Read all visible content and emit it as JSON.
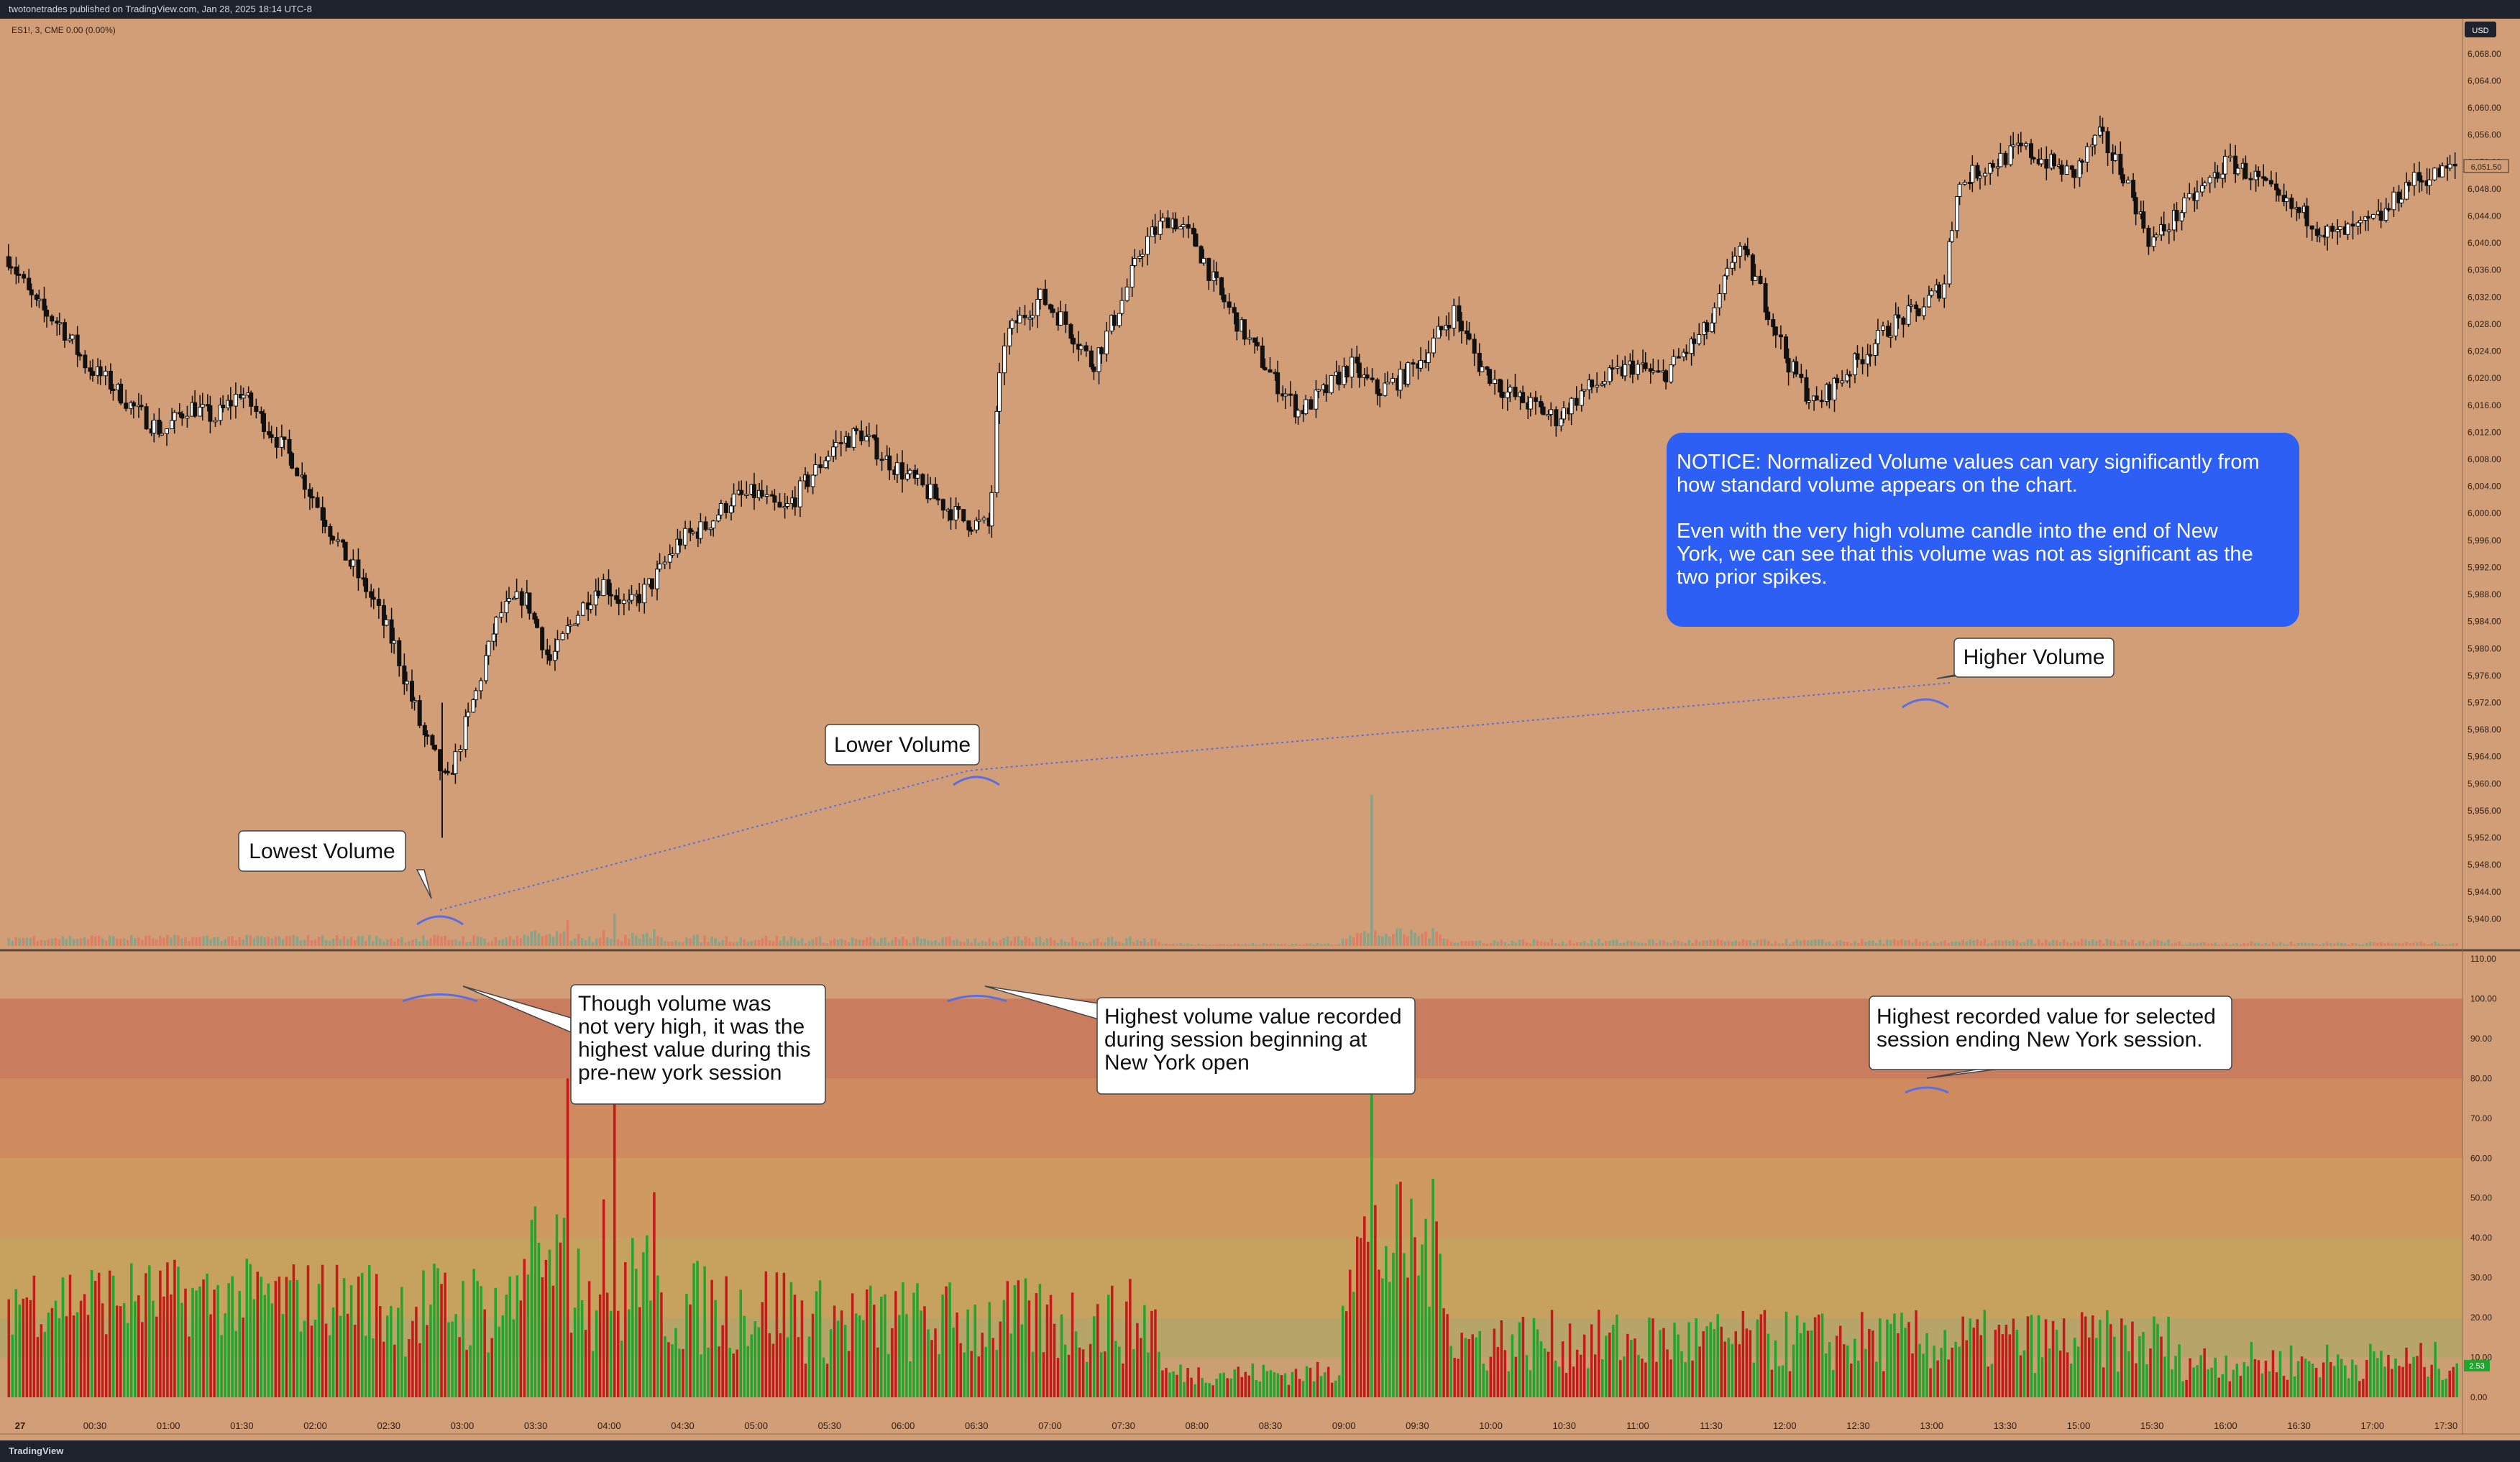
{
  "header": {
    "published_text": "twotonetrades published on TradingView.com, Jan 28, 2025 18:14 UTC-8"
  },
  "footer": {
    "brand": "TradingView"
  },
  "symbol_info": "ES1!, 3, CME  0.00 (0.00%)",
  "currency_badge": "USD",
  "price_tag": "6,051.50",
  "volume_tag": "2.53",
  "colors": {
    "background": "#d29e78",
    "up": "#22a52f",
    "down": "#c41a1a",
    "notice": "#2d5ff5",
    "arc": "#5b6ee0"
  },
  "annotations": {
    "lowest": "Lowest Volume",
    "lower": "Lower Volume",
    "higher": "Higher Volume",
    "notice": [
      "NOTICE: Normalized Volume values can vary significantly from",
      "how standard volume appears on the chart.",
      "",
      "Even with the very high volume candle into the end of New",
      "York, we can see that this volume was not as significant as the",
      "two prior spikes."
    ],
    "pre_ny": [
      "Though volume was",
      "not very high, it was the",
      "highest value during this",
      "pre-new york session"
    ],
    "ny_open": [
      "Highest volume value recorded",
      "during session beginning at",
      "New York open"
    ],
    "ny_end": [
      "Highest recorded value for selected",
      "session ending New York session."
    ]
  },
  "chart_data": [
    {
      "type": "candlestick",
      "title": "ES1!, 3, CME",
      "ylim": [
        5936,
        6070
      ],
      "y_ticks": [
        "6,068.00",
        "6,064.00",
        "6,060.00",
        "6,056.00",
        "6,052.00",
        "6,048.00",
        "6,044.00",
        "6,040.00",
        "6,036.00",
        "6,032.00",
        "6,028.00",
        "6,024.00",
        "6,020.00",
        "6,016.00",
        "6,012.00",
        "6,008.00",
        "6,004.00",
        "6,000.00",
        "5,996.00",
        "5,992.00",
        "5,988.00",
        "5,984.00",
        "5,980.00",
        "5,976.00",
        "5,972.00",
        "5,968.00",
        "5,964.00",
        "5,960.00",
        "5,956.00",
        "5,952.00",
        "5,948.00",
        "5,944.00",
        "5,940.00"
      ],
      "x_ticks": [
        "27",
        "00:30",
        "01:00",
        "01:30",
        "02:00",
        "02:30",
        "03:00",
        "03:30",
        "04:00",
        "04:30",
        "05:00",
        "05:30",
        "06:00",
        "06:30",
        "07:00",
        "07:30",
        "08:00",
        "08:30",
        "09:00",
        "09:30",
        "10:00",
        "10:30",
        "11:00",
        "11:30",
        "12:00",
        "12:30",
        "13:00",
        "13:30",
        "15:00",
        "15:30",
        "16:00",
        "16:30",
        "17:00",
        "17:30"
      ],
      "close_path": [
        [
          0,
          6038
        ],
        [
          10,
          6031
        ],
        [
          20,
          6028
        ],
        [
          30,
          6022
        ],
        [
          40,
          6019
        ],
        [
          50,
          6015
        ],
        [
          60,
          6012
        ],
        [
          70,
          6016
        ],
        [
          80,
          6014
        ],
        [
          90,
          6018
        ],
        [
          100,
          6013
        ],
        [
          110,
          6008
        ],
        [
          120,
          6001
        ],
        [
          130,
          5994
        ],
        [
          140,
          5988
        ],
        [
          150,
          5980
        ],
        [
          160,
          5968
        ],
        [
          170,
          5960
        ],
        [
          180,
          5972
        ],
        [
          190,
          5985
        ],
        [
          200,
          5988
        ],
        [
          210,
          5978
        ],
        [
          220,
          5985
        ],
        [
          230,
          5990
        ],
        [
          240,
          5986
        ],
        [
          250,
          5990
        ],
        [
          260,
          5996
        ],
        [
          270,
          5998
        ],
        [
          280,
          6002
        ],
        [
          290,
          6003
        ],
        [
          300,
          6000
        ],
        [
          310,
          6005
        ],
        [
          320,
          6010
        ],
        [
          330,
          6012
        ],
        [
          340,
          6008
        ],
        [
          350,
          6005
        ],
        [
          360,
          6002
        ],
        [
          370,
          5999
        ],
        [
          380,
          5998
        ],
        [
          385,
          6025
        ],
        [
          390,
          6028
        ],
        [
          400,
          6032
        ],
        [
          410,
          6028
        ],
        [
          420,
          6022
        ],
        [
          430,
          6030
        ],
        [
          440,
          6040
        ],
        [
          450,
          6044
        ],
        [
          460,
          6040
        ],
        [
          470,
          6032
        ],
        [
          480,
          6026
        ],
        [
          490,
          6020
        ],
        [
          500,
          6015
        ],
        [
          510,
          6018
        ],
        [
          520,
          6022
        ],
        [
          530,
          6018
        ],
        [
          540,
          6020
        ],
        [
          550,
          6024
        ],
        [
          560,
          6030
        ],
        [
          570,
          6022
        ],
        [
          580,
          6018
        ],
        [
          590,
          6016
        ],
        [
          600,
          6014
        ],
        [
          610,
          6018
        ],
        [
          620,
          6020
        ],
        [
          630,
          6022
        ],
        [
          640,
          6020
        ],
        [
          650,
          6024
        ],
        [
          660,
          6028
        ],
        [
          670,
          6040
        ],
        [
          680,
          6032
        ],
        [
          690,
          6022
        ],
        [
          700,
          6016
        ],
        [
          710,
          6020
        ],
        [
          720,
          6024
        ],
        [
          730,
          6028
        ],
        [
          740,
          6030
        ],
        [
          750,
          6034
        ],
        [
          755,
          6048
        ],
        [
          760,
          6050
        ],
        [
          770,
          6052
        ],
        [
          780,
          6054
        ],
        [
          790,
          6052
        ],
        [
          800,
          6050
        ],
        [
          810,
          6056
        ],
        [
          820,
          6050
        ],
        [
          830,
          6040
        ],
        [
          840,
          6044
        ],
        [
          850,
          6048
        ],
        [
          860,
          6052
        ],
        [
          870,
          6050
        ],
        [
          880,
          6046
        ],
        [
          890,
          6044
        ],
        [
          900,
          6041
        ],
        [
          910,
          6042
        ],
        [
          920,
          6044
        ],
        [
          930,
          6049
        ],
        [
          940,
          6050
        ],
        [
          950,
          6051.5
        ]
      ],
      "annotations": [
        "Lowest Volume",
        "Lower Volume",
        "Higher Volume"
      ]
    },
    {
      "type": "bar",
      "title": "Normalized Volume",
      "ylim": [
        0,
        110
      ],
      "y_ticks": [
        "110.00",
        "100.00",
        "90.00",
        "80.00",
        "70.00",
        "60.00",
        "50.00",
        "40.00",
        "30.00",
        "20.00",
        "10.00",
        "0.00"
      ],
      "zones": [
        [
          80,
          100
        ],
        [
          60,
          80
        ],
        [
          40,
          60
        ],
        [
          20,
          40
        ],
        [
          10,
          20
        ],
        [
          0,
          10
        ]
      ],
      "spikes": [
        {
          "bar": 168,
          "value": 100,
          "label": "pre-new york session high"
        },
        {
          "bar": 378,
          "value": 100,
          "label": "New York open high"
        },
        {
          "bar": 745,
          "value": 76,
          "label": "New York session end high"
        }
      ],
      "notable_values": [
        {
          "bar": 155,
          "value": 80
        },
        {
          "bar": 760,
          "value": 30
        },
        {
          "bar": 825,
          "value": 38
        },
        {
          "bar": 890,
          "value": 12
        }
      ],
      "baseline_range": [
        8,
        38
      ]
    }
  ]
}
